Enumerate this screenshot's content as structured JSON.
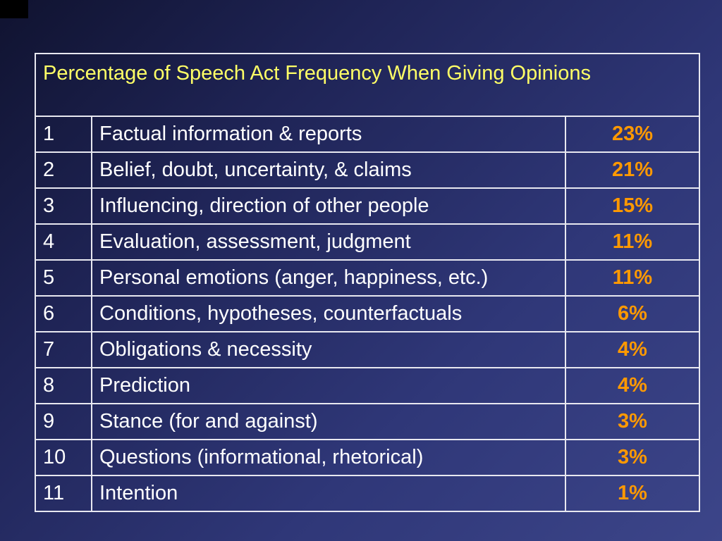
{
  "slide": {
    "title": "Percentage of Speech Act Frequency When Giving Opinions",
    "rows": [
      {
        "rank": "1",
        "category": "Factual information & reports",
        "percent": "23%"
      },
      {
        "rank": "2",
        "category": "Belief, doubt, uncertainty, & claims",
        "percent": "21%"
      },
      {
        "rank": "3",
        "category": "Influencing, direction of other people",
        "percent": "15%"
      },
      {
        "rank": "4",
        "category": "Evaluation, assessment, judgment",
        "percent": "11%"
      },
      {
        "rank": "5",
        "category": "Personal emotions (anger, happiness, etc.)",
        "percent": "11%"
      },
      {
        "rank": "6",
        "category": "Conditions, hypotheses, counterfactuals",
        "percent": "6%"
      },
      {
        "rank": "7",
        "category": "Obligations & necessity",
        "percent": "4%"
      },
      {
        "rank": "8",
        "category": "Prediction",
        "percent": "4%"
      },
      {
        "rank": "9",
        "category": "Stance (for and against)",
        "percent": "3%"
      },
      {
        "rank": "10",
        "category": "Questions (informational, rhetorical)",
        "percent": "3%"
      },
      {
        "rank": "11",
        "category": "Intention",
        "percent": "1%"
      }
    ]
  },
  "colors": {
    "background_dark": "#101330",
    "background_light": "#3c4589",
    "title_text": "#ffff66",
    "percent_text": "#ff9900",
    "body_text": "#ffffff",
    "grid_lines": "#e8e8f0"
  }
}
